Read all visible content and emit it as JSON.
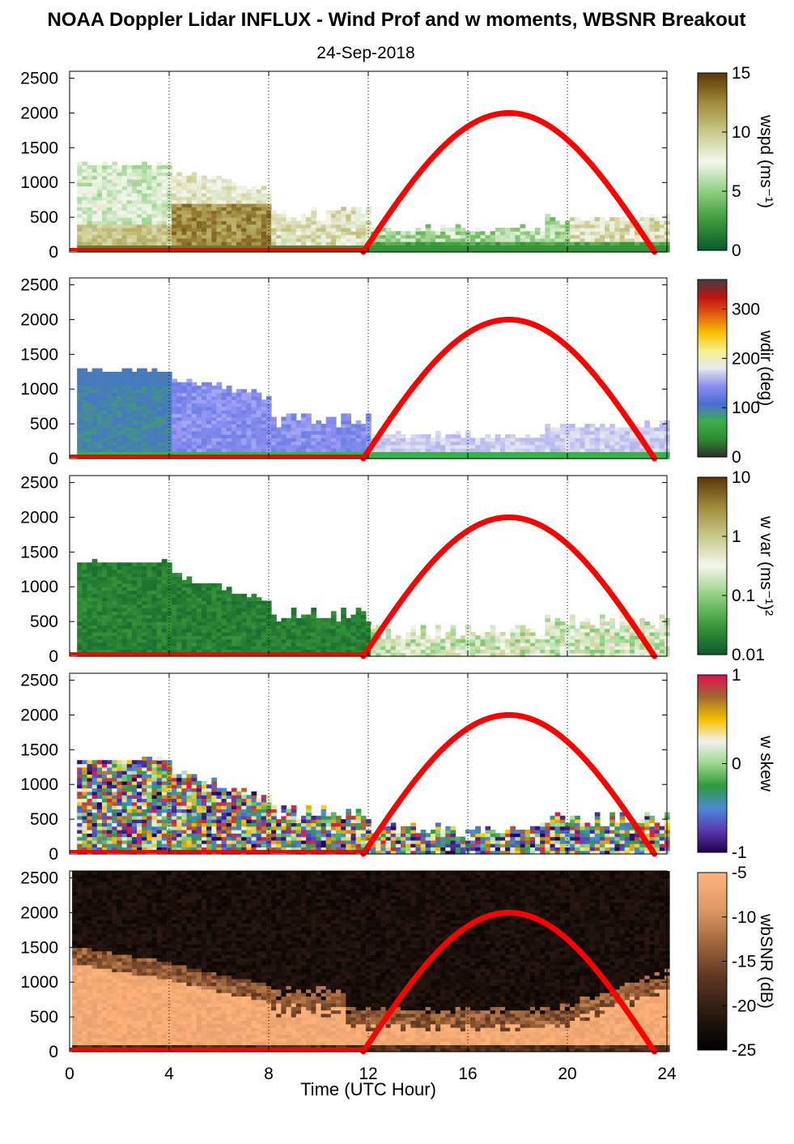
{
  "figure": {
    "title": "NOAA Doppler Lidar INFLUX - Wind Prof and w moments, WBSNR Breakout",
    "date": "24-Sep-2018",
    "xlabel": "Time (UTC Hour)"
  },
  "chart_data": [
    {
      "type": "heatmap",
      "name": "wspd",
      "colorbar_label": "wspd (ms⁻¹)",
      "colorbar_ticks": [
        "15",
        "10",
        "5",
        "0"
      ],
      "colorbar_range": [
        0,
        15
      ],
      "colormap": [
        "#0b5a2a",
        "#3a9a3a",
        "#8fd07f",
        "#f4f7ee",
        "#c9c98a",
        "#a08a3a",
        "#5a3608"
      ],
      "x_range": [
        0,
        24
      ],
      "y_range": [
        0,
        2600
      ],
      "x_ticks": [
        0,
        4,
        8,
        12,
        16,
        20,
        24
      ],
      "y_ticks": [
        "2500",
        "2000",
        "1500",
        "1000",
        "500",
        "0"
      ],
      "sun_curve": {
        "color": "#ff0000",
        "start_hour": 11.8,
        "peak_hour": 17.6,
        "end_hour": 23.5,
        "peak_value": 2000
      }
    },
    {
      "type": "heatmap",
      "name": "wdir",
      "colorbar_label": "wdir (deg)",
      "colorbar_ticks": [
        "300",
        "200",
        "100",
        "0"
      ],
      "colorbar_range": [
        0,
        360
      ],
      "colormap": [
        "#303030",
        "#2e8b2e",
        "#3cb04a",
        "#4a6ed8",
        "#8a8ef0",
        "#e8e8f0",
        "#f5f08a",
        "#f5c000",
        "#e06010",
        "#c01010",
        "#404040"
      ],
      "x_range": [
        0,
        24
      ],
      "y_range": [
        0,
        2600
      ],
      "x_ticks": [
        0,
        4,
        8,
        12,
        16,
        20,
        24
      ],
      "y_ticks": [
        "2500",
        "2000",
        "1500",
        "1000",
        "500",
        "0"
      ],
      "sun_curve": {
        "color": "#ff0000",
        "start_hour": 11.8,
        "peak_hour": 17.6,
        "end_hour": 23.5,
        "peak_value": 2000
      }
    },
    {
      "type": "heatmap",
      "name": "w var",
      "colorbar_label": "w var (ms⁻¹)²",
      "colorbar_ticks": [
        "10",
        "1",
        "0.1",
        "0.01"
      ],
      "colorbar_range": [
        0.01,
        10
      ],
      "colorbar_scale": "log",
      "colormap": [
        "#0b5a2a",
        "#3a9a3a",
        "#8fd07f",
        "#f4f7ee",
        "#c9c98a",
        "#a08a3a",
        "#5a3608"
      ],
      "x_range": [
        0,
        24
      ],
      "y_range": [
        0,
        2600
      ],
      "x_ticks": [
        0,
        4,
        8,
        12,
        16,
        20,
        24
      ],
      "y_ticks": [
        "2500",
        "2000",
        "1500",
        "1000",
        "500",
        "0"
      ],
      "sun_curve": {
        "color": "#ff0000",
        "start_hour": 11.8,
        "peak_hour": 17.6,
        "end_hour": 23.5,
        "peak_value": 2000
      }
    },
    {
      "type": "heatmap",
      "name": "w skew",
      "colorbar_label": "w skew",
      "colorbar_ticks": [
        "1",
        "0",
        "-1"
      ],
      "colorbar_range": [
        -1,
        1
      ],
      "colormap": [
        "#20004a",
        "#5a3ab0",
        "#4a8ad8",
        "#2e9a3a",
        "#9ad88a",
        "#f2f2ee",
        "#f5c000",
        "#a06a30",
        "#e01050"
      ],
      "x_range": [
        0,
        24
      ],
      "y_range": [
        0,
        2600
      ],
      "x_ticks": [
        0,
        4,
        8,
        12,
        16,
        20,
        24
      ],
      "y_ticks": [
        "2500",
        "2000",
        "1500",
        "1000",
        "500",
        "0"
      ],
      "sun_curve": {
        "color": "#ff0000",
        "start_hour": 11.8,
        "peak_hour": 17.6,
        "end_hour": 23.5,
        "peak_value": 2000
      }
    },
    {
      "type": "heatmap",
      "name": "wbSNR",
      "colorbar_label": "wbSNR (dB)",
      "colorbar_ticks": [
        "-5",
        "-10",
        "-15",
        "-20",
        "-25"
      ],
      "colorbar_range": [
        -25,
        -5
      ],
      "colormap": [
        "#000000",
        "#2a1810",
        "#5a3520",
        "#a0653a",
        "#e09a68",
        "#ffb47a"
      ],
      "x_range": [
        0,
        24
      ],
      "y_range": [
        0,
        2600
      ],
      "x_ticks": [
        "0",
        "4",
        "8",
        "12",
        "16",
        "20",
        "24"
      ],
      "y_ticks": [
        "2500",
        "2000",
        "1500",
        "1000",
        "500",
        "0"
      ],
      "sun_curve": {
        "color": "#ff0000",
        "start_hour": 11.8,
        "peak_hour": 17.6,
        "end_hour": 23.5,
        "peak_value": 2000
      }
    }
  ]
}
